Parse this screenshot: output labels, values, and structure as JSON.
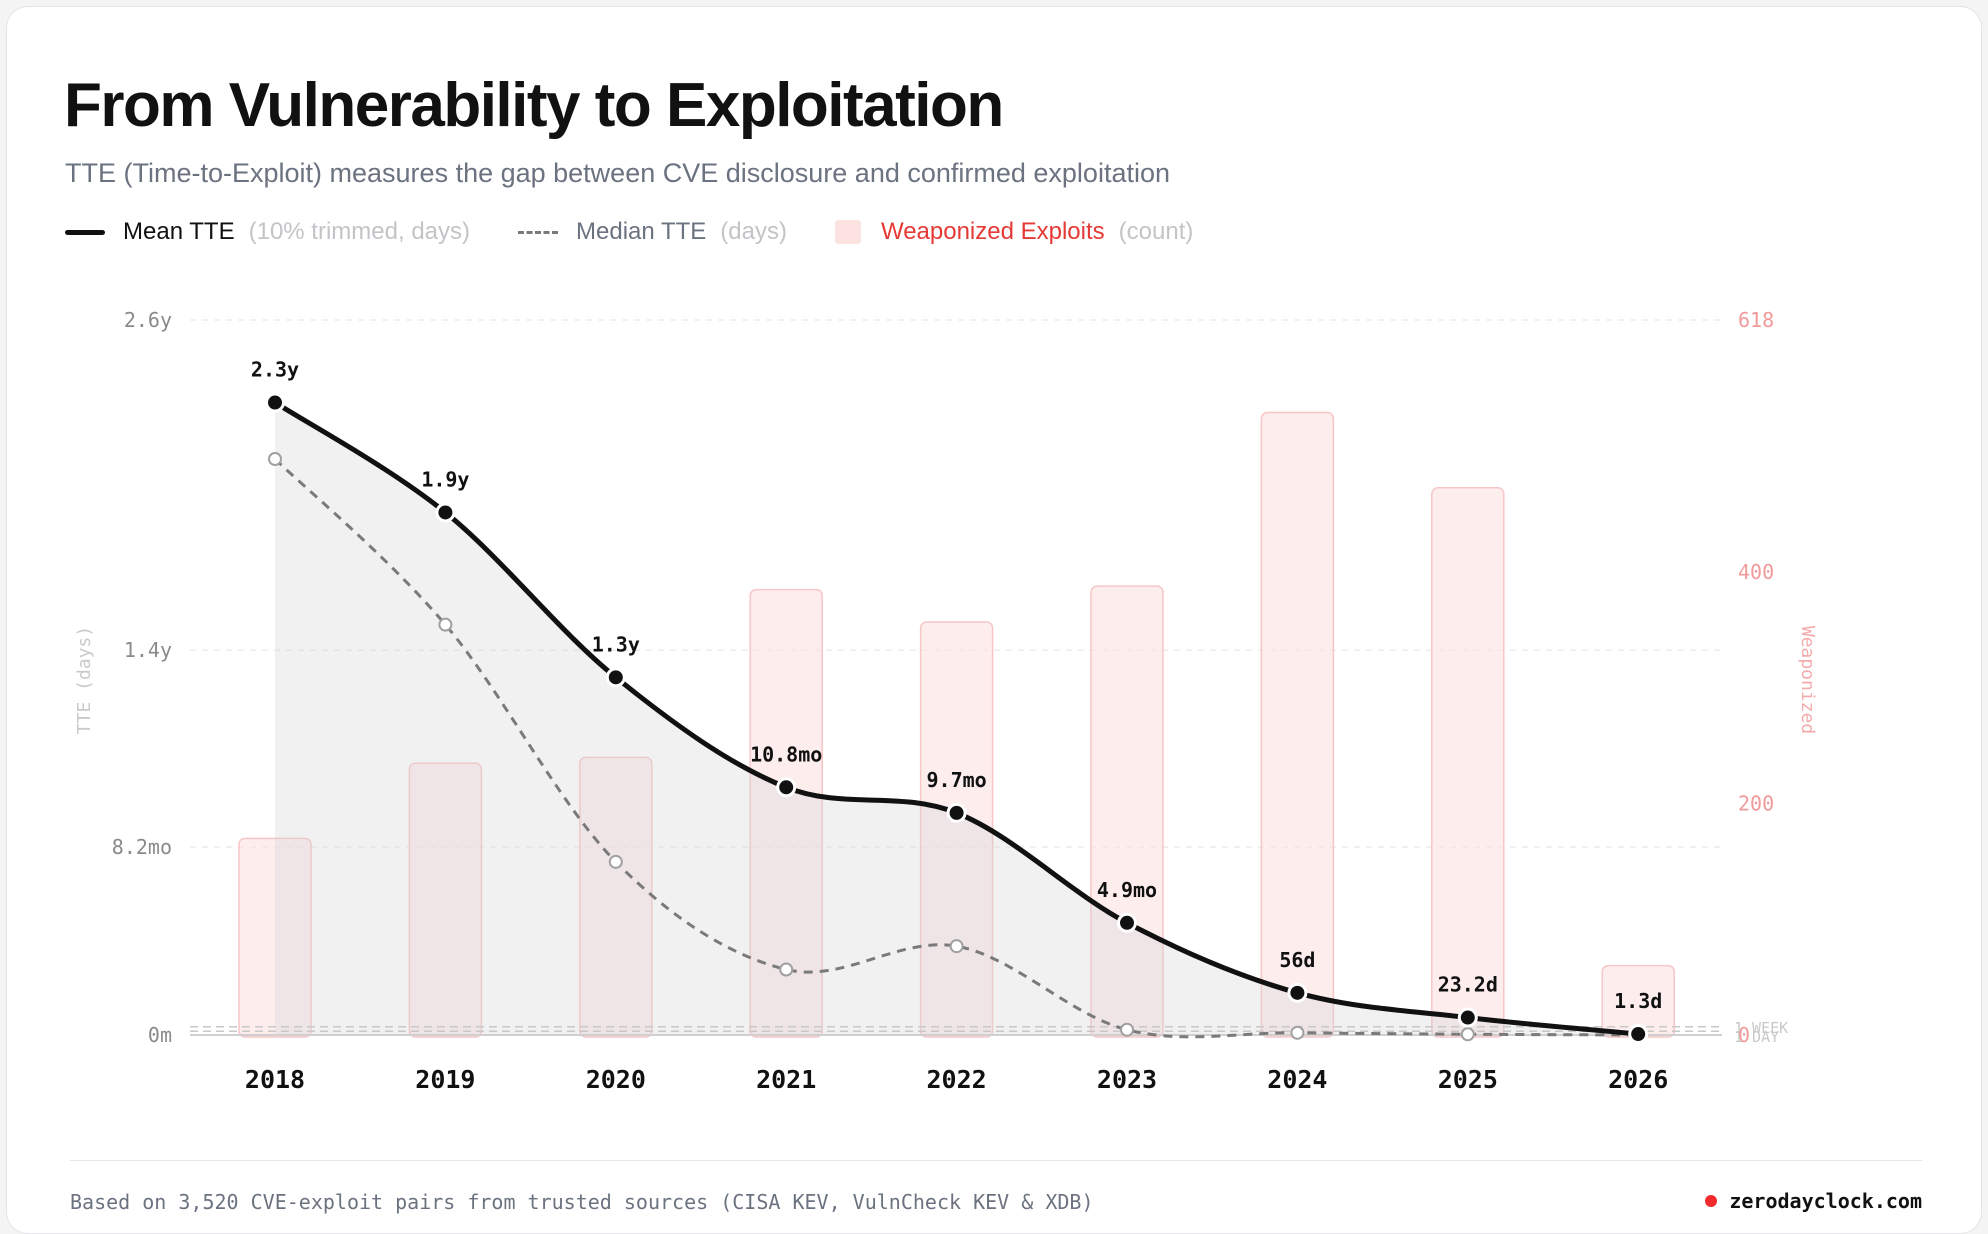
{
  "title": "From Vulnerability to Exploitation",
  "subtitle": "TTE (Time-to-Exploit) measures the gap between CVE disclosure and confirmed exploitation",
  "legend": {
    "mean_label": "Mean TTE",
    "mean_note": "(10% trimmed, days)",
    "median_label": "Median TTE",
    "median_note": "(days)",
    "exploits_label": "Weaponized Exploits",
    "exploits_note": "(count)"
  },
  "footer": {
    "source": "Based on 3,520 CVE-exploit pairs from trusted sources (CISA KEV, VulnCheck KEV & XDB)",
    "brand": "zerodayclock.com"
  },
  "colors": {
    "mean": "#111111",
    "median": "#7a7a7a",
    "bars": "#fde2e2",
    "exploits_text": "#e53935",
    "right_axis": "#f19a9a"
  },
  "chart_data": {
    "type": "line",
    "categories": [
      "2018",
      "2019",
      "2020",
      "2021",
      "2022",
      "2023",
      "2024",
      "2025",
      "2026"
    ],
    "y_left": {
      "label": "TTE (days)",
      "ticks": [
        {
          "value": 0,
          "label": "0m"
        },
        {
          "value": 249.5,
          "label": "8.2mo"
        },
        {
          "value": 511,
          "label": "1.4y"
        },
        {
          "value": 949.6,
          "label": "2.6y"
        }
      ],
      "reference_lines": [
        {
          "value": 7,
          "label": "1 WEEK"
        },
        {
          "value": 1,
          "label": "1 DAY"
        }
      ],
      "range": [
        0,
        949.6
      ]
    },
    "y_right": {
      "label": "Weaponized",
      "ticks": [
        0,
        200,
        400,
        618
      ],
      "range": [
        0,
        618
      ]
    },
    "series": [
      {
        "name": "Mean TTE",
        "axis": "left",
        "values": [
          840,
          694,
          475,
          329,
          295,
          149,
          56,
          23.2,
          1.3
        ],
        "labels": [
          "2.3y",
          "1.9y",
          "1.3y",
          "10.8mo",
          "9.7mo",
          "4.9mo",
          "56d",
          "23.2d",
          "1.3d"
        ]
      },
      {
        "name": "Median TTE",
        "axis": "left",
        "values": [
          765,
          545,
          230,
          87,
          118,
          7,
          3,
          1,
          0
        ]
      },
      {
        "name": "Weaponized Exploits",
        "axis": "right",
        "type": "bar",
        "values": [
          170,
          235,
          240,
          385,
          357,
          388,
          538,
          473,
          60
        ]
      }
    ]
  }
}
